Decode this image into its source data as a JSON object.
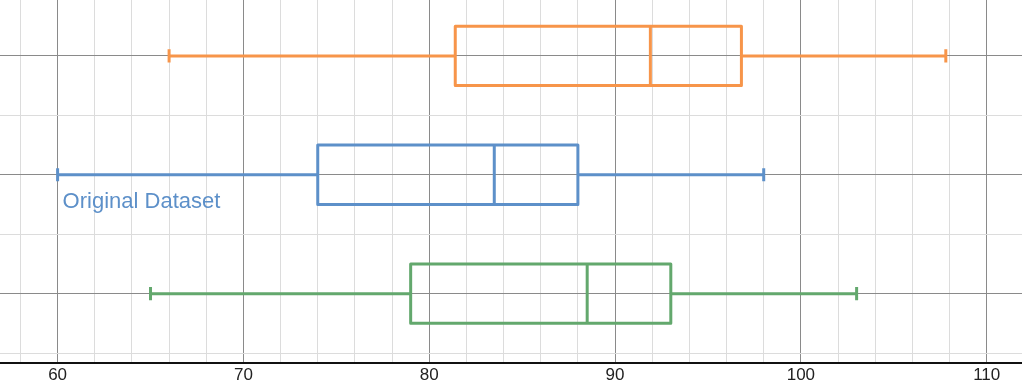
{
  "chart_data": {
    "type": "box",
    "orientation": "horizontal",
    "categories": [
      null,
      null,
      null
    ],
    "boxes": [
      {
        "low": 66,
        "q1": 81.4,
        "median": 91.9,
        "q3": 96.8,
        "high": 107.8
      },
      {
        "low": 60,
        "q1": 74,
        "median": 83.5,
        "q3": 88,
        "high": 98
      },
      {
        "low": 65,
        "q1": 79,
        "median": 88.5,
        "q3": 93,
        "high": 103
      }
    ],
    "colors": [
      "#f7954a",
      "#5d90c9",
      "#63a86d"
    ],
    "xlim": [
      56.9,
      111.9
    ],
    "xticks": [
      {
        "value": 58,
        "label": null
      },
      60,
      {
        "value": 62,
        "label": null
      },
      {
        "value": 64,
        "label": null
      },
      {
        "value": 66,
        "label": null
      },
      {
        "value": 68,
        "label": null
      },
      70,
      {
        "value": 72,
        "label": null
      },
      {
        "value": 74,
        "label": null
      },
      {
        "value": 76,
        "label": null
      },
      {
        "value": 78,
        "label": null
      },
      80,
      {
        "value": 82,
        "label": null
      },
      {
        "value": 84,
        "label": null
      },
      {
        "value": 86,
        "label": null
      },
      {
        "value": 88,
        "label": null
      },
      90,
      {
        "value": 92,
        "label": null
      },
      {
        "value": 94,
        "label": null
      },
      {
        "value": 96,
        "label": null
      },
      {
        "value": 98,
        "label": null
      },
      100,
      {
        "value": 102,
        "label": null
      },
      {
        "value": 104,
        "label": null
      },
      {
        "value": 106,
        "label": null
      },
      {
        "value": 108,
        "label": null
      },
      110
    ],
    "grid": true,
    "annotations": [
      "Original Dataset"
    ]
  }
}
